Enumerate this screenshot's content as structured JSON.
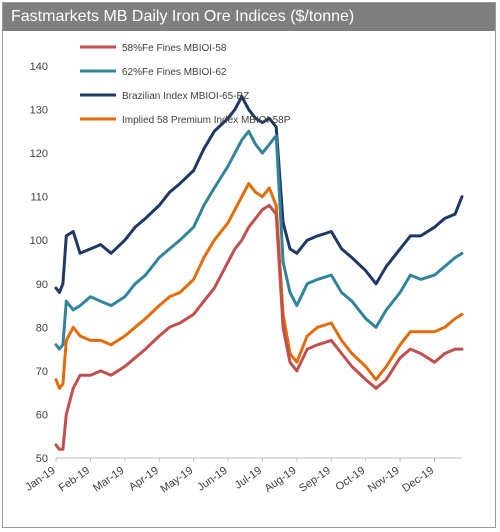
{
  "chart_data": {
    "type": "line",
    "title": "Fastmarkets MB Daily Iron Ore Indices ($/tonne)",
    "xlabel": "",
    "ylabel": "",
    "ylim": [
      50,
      140
    ],
    "yticks": [
      50,
      60,
      70,
      80,
      90,
      100,
      110,
      120,
      130,
      140
    ],
    "xlim": [
      1,
      12.8
    ],
    "x_tick_labels": [
      "Jan-19",
      "Feb-19",
      "Mar-19",
      "Apr-19",
      "May-19",
      "Jun-19",
      "Jul-19",
      "Aug-19",
      "Sep-19",
      "Oct-19",
      "Nov-19",
      "Dec-19"
    ],
    "grid": false,
    "legend": "top-left",
    "x": [
      1.0,
      1.1,
      1.2,
      1.3,
      1.5,
      1.7,
      2.0,
      2.3,
      2.6,
      3.0,
      3.3,
      3.6,
      4.0,
      4.3,
      4.6,
      5.0,
      5.3,
      5.6,
      6.0,
      6.2,
      6.4,
      6.6,
      6.8,
      7.0,
      7.2,
      7.4,
      7.6,
      7.8,
      8.0,
      8.3,
      8.6,
      9.0,
      9.3,
      9.6,
      10.0,
      10.3,
      10.6,
      11.0,
      11.3,
      11.6,
      12.0,
      12.3,
      12.6,
      12.8
    ],
    "series": [
      {
        "name": "58%Fe Fines MBIOI-58",
        "color": "#c0504d",
        "values": [
          53,
          52,
          52,
          60,
          66,
          69,
          69,
          70,
          69,
          71,
          73,
          75,
          78,
          80,
          81,
          83,
          86,
          89,
          95,
          98,
          100,
          103,
          105,
          107,
          108,
          106,
          80,
          72,
          70,
          75,
          76,
          77,
          74,
          71,
          68,
          66,
          68,
          73,
          75,
          74,
          72,
          74,
          75,
          75
        ]
      },
      {
        "name": "62%Fe Fines MBIOI-62",
        "color": "#31849b",
        "values": [
          76,
          75,
          76,
          86,
          84,
          85,
          87,
          86,
          85,
          87,
          90,
          92,
          96,
          98,
          100,
          103,
          108,
          112,
          117,
          120,
          123,
          125,
          122,
          120,
          122,
          124,
          95,
          88,
          85,
          90,
          91,
          92,
          88,
          86,
          82,
          80,
          84,
          88,
          92,
          91,
          92,
          94,
          96,
          97
        ]
      },
      {
        "name": "Brazilian Index MBIOI-65-BZ",
        "color": "#1f3864",
        "values": [
          89,
          88,
          90,
          101,
          102,
          97,
          98,
          99,
          97,
          100,
          103,
          105,
          108,
          111,
          113,
          116,
          121,
          125,
          128,
          130,
          133,
          130,
          128,
          127,
          128,
          126,
          104,
          98,
          97,
          100,
          101,
          102,
          98,
          96,
          93,
          90,
          94,
          98,
          101,
          101,
          103,
          105,
          106,
          110
        ]
      },
      {
        "name": "Implied 58 Premium Index MBIOI-58P",
        "color": "#e36c09",
        "values": [
          68,
          66,
          67,
          77,
          80,
          78,
          77,
          77,
          76,
          78,
          80,
          82,
          85,
          87,
          88,
          91,
          96,
          100,
          104,
          107,
          110,
          113,
          111,
          110,
          112,
          108,
          83,
          74,
          72,
          78,
          80,
          81,
          77,
          74,
          71,
          68,
          71,
          76,
          79,
          79,
          79,
          80,
          82,
          83
        ]
      }
    ]
  }
}
